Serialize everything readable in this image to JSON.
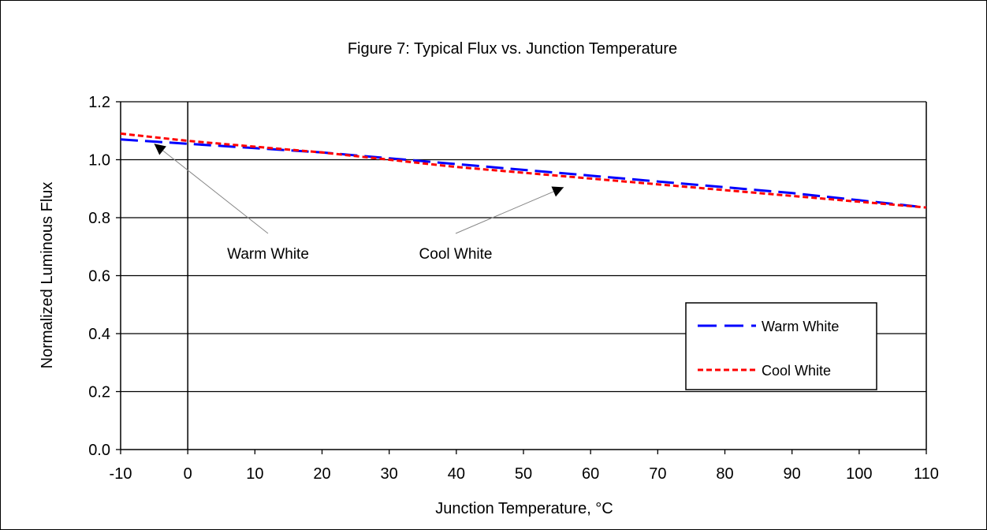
{
  "chart_data": {
    "type": "line",
    "title": "Figure 7:  Typical Flux vs. Junction Temperature",
    "xlabel": "Junction Temperature,  °C",
    "ylabel": "Normalized Luminous  Flux",
    "xlim": [
      -10,
      110
    ],
    "ylim": [
      0,
      1.2
    ],
    "x_ticks": [
      "-10",
      "0",
      "10",
      "20",
      "30",
      "40",
      "50",
      "60",
      "70",
      "80",
      "90",
      "100",
      "110"
    ],
    "y_ticks": [
      "0.0",
      "0.2",
      "0.4",
      "0.6",
      "0.8",
      "1.0",
      "1.2"
    ],
    "grid": "horizontal",
    "legend_position": "lower-right",
    "series": [
      {
        "name": "Warm White",
        "color": "#0000ff",
        "style": "long-dash",
        "x": [
          -10,
          0,
          10,
          20,
          30,
          40,
          50,
          60,
          70,
          80,
          90,
          100,
          110
        ],
        "y": [
          1.07,
          1.055,
          1.04,
          1.025,
          1.005,
          0.985,
          0.965,
          0.945,
          0.925,
          0.905,
          0.885,
          0.86,
          0.835
        ]
      },
      {
        "name": "Cool White",
        "color": "#ff0000",
        "style": "short-dash",
        "x": [
          -10,
          0,
          10,
          20,
          30,
          40,
          50,
          60,
          70,
          80,
          90,
          100,
          110
        ],
        "y": [
          1.09,
          1.065,
          1.045,
          1.025,
          1.0,
          0.975,
          0.955,
          0.935,
          0.915,
          0.895,
          0.875,
          0.855,
          0.835
        ]
      }
    ],
    "annotations": [
      {
        "text": "Warm White",
        "target_x": -5,
        "target_y": 1.055
      },
      {
        "text": "Cool White",
        "target_x": 56,
        "target_y": 0.905
      }
    ]
  }
}
